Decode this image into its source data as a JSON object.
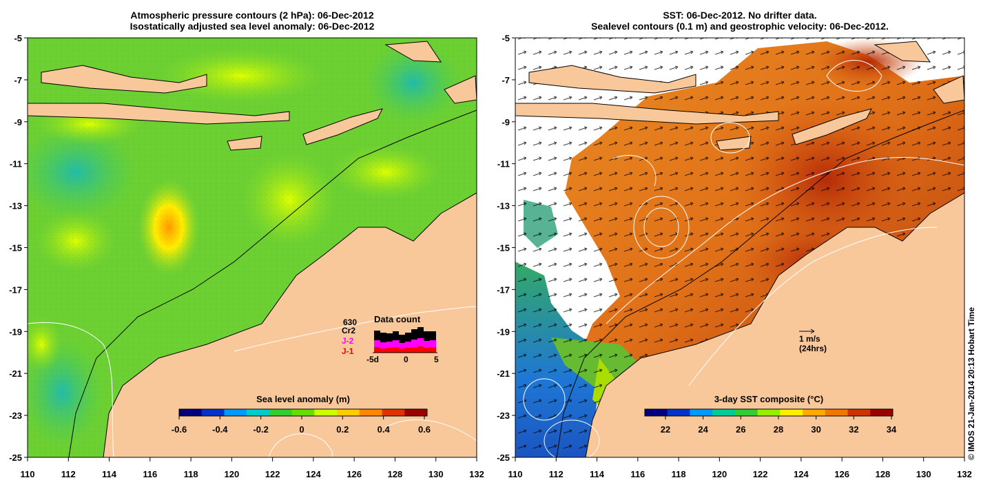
{
  "left_panel": {
    "title_line1": "Atmospheric pressure contours (2 hPa): 06-Dec-2012",
    "title_line2": "Isostatically adjusted sea level anomaly: 06-Dec-2012",
    "colorbar_title": "Sea level anomaly (m)",
    "colorbar_ticks": [
      "-0.6",
      "-0.4",
      "-0.2",
      "0",
      "0.2",
      "0.4",
      "0.6"
    ],
    "data_count": {
      "title": "Data count",
      "labels": [
        "630",
        "Cr2",
        "J-2",
        "J-1"
      ],
      "label_colors": [
        "#000000",
        "#000000",
        "#ff00ff",
        "#ff0000"
      ],
      "x_ticks": [
        "-5d",
        "0",
        "5"
      ]
    }
  },
  "right_panel": {
    "title_line1": "SST: 06-Dec-2012. No drifter data.",
    "title_line2": "Sealevel contours (0.1 m) and geostrophic velocity: 06-Dec-2012.",
    "colorbar_title": "3-day SST composite (°C)",
    "colorbar_ticks": [
      "22",
      "24",
      "26",
      "28",
      "30",
      "32",
      "34"
    ],
    "velocity_scale_label": "1 m/s",
    "velocity_scale_sublabel": "(24hrs)"
  },
  "axes": {
    "lat_ticks": [
      "-5",
      "-7",
      "-9",
      "-11",
      "-13",
      "-15",
      "-17",
      "-19",
      "-21",
      "-23",
      "-25"
    ],
    "lon_ticks": [
      "110",
      "112",
      "114",
      "116",
      "118",
      "120",
      "122",
      "124",
      "126",
      "128",
      "130",
      "132"
    ]
  },
  "credit": "© IMOS 21-Jan-2014 20:13 Hobart Time",
  "colors": {
    "land": "#f9c89a",
    "sla_ramp": [
      "#00007f",
      "#0033cc",
      "#0099ff",
      "#00cccc",
      "#33cc33",
      "#66dd00",
      "#ccff00",
      "#ffcc00",
      "#ff8800",
      "#dd3300",
      "#990000"
    ],
    "sst_ramp": [
      "#00007f",
      "#0033cc",
      "#0099ff",
      "#00cc99",
      "#33cc33",
      "#99ee00",
      "#ffee00",
      "#ffaa00",
      "#ee7700",
      "#cc3300",
      "#990000"
    ]
  }
}
